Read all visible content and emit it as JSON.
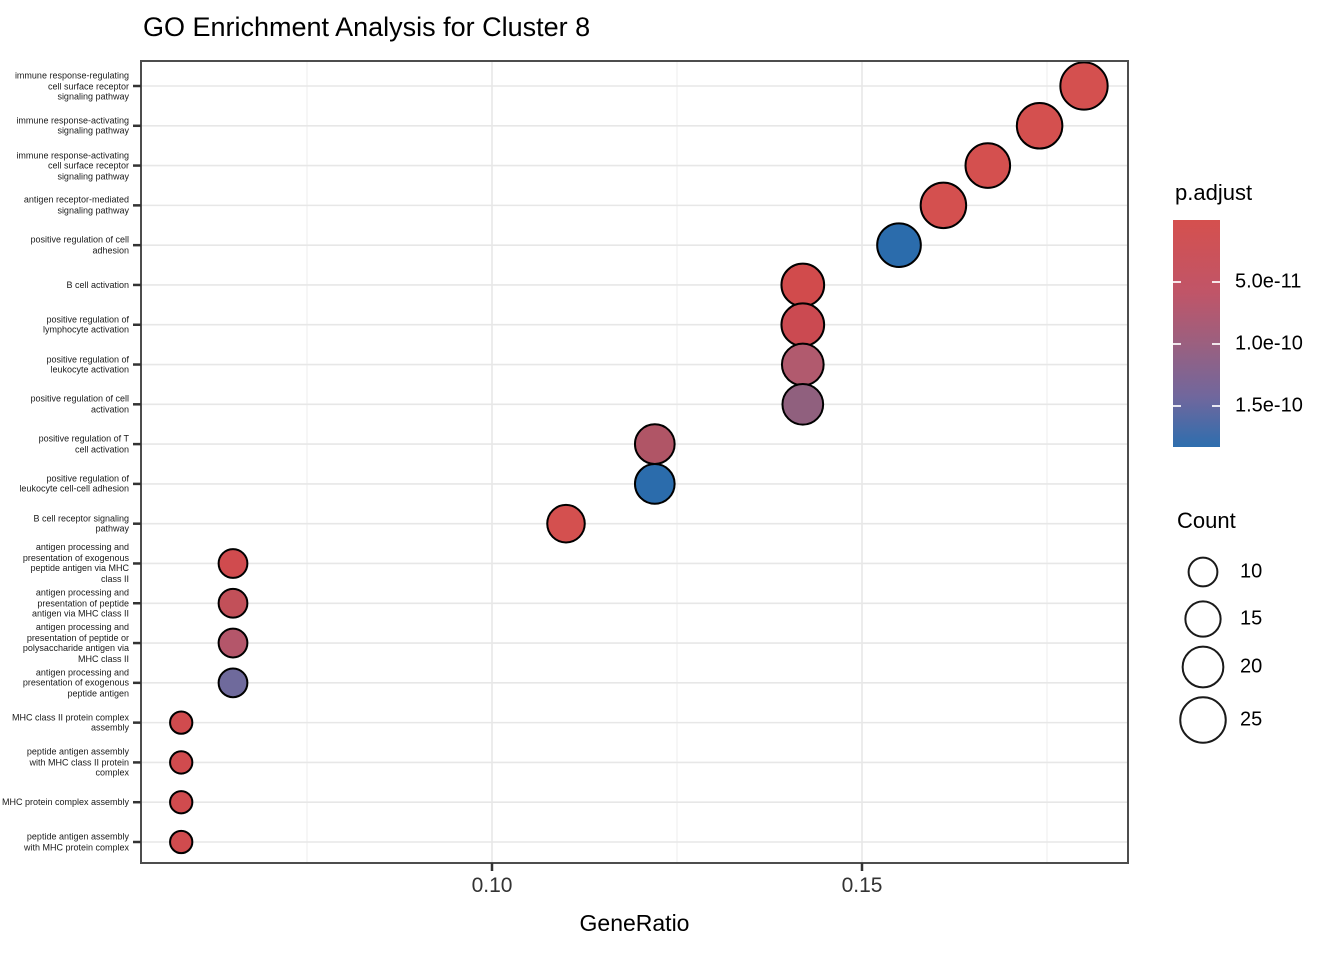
{
  "title": "GO Enrichment Analysis for Cluster 8",
  "x_axis": {
    "label": "GeneRatio",
    "ticks": [
      "0.10",
      "0.15"
    ],
    "tick_values": [
      0.1,
      0.15
    ],
    "minor_gridline_values": [
      0.075,
      0.125,
      0.175
    ],
    "range": [
      0.0527,
      0.1859
    ]
  },
  "legend": {
    "p_adjust": {
      "title": "p.adjust",
      "ticks": [
        "5.0e-11",
        "1.0e-10",
        "1.5e-10"
      ],
      "gradient_stops": [
        "#D5504E",
        "#C05568",
        "#9A6080",
        "#70679D",
        "#2E6EAE"
      ]
    },
    "count": {
      "title": "Count",
      "values": [
        10,
        15,
        20,
        25
      ]
    }
  },
  "chart_data": {
    "type": "scatter",
    "title": "GO Enrichment Analysis for Cluster 8",
    "xlabel": "GeneRatio",
    "x_ticks": [
      0.1,
      0.15
    ],
    "xlim": [
      0.0527,
      0.1859
    ],
    "grid": true,
    "legend_position": "right",
    "color_scale": {
      "label": "p.adjust",
      "domain": [
        0,
        1.83e-10
      ],
      "low_color": "#D5504E",
      "high_color": "#2E6EAE"
    },
    "size_scale": {
      "label": "Count",
      "legend_values": [
        10,
        15,
        20,
        25
      ]
    },
    "points": [
      {
        "label": "immune response-regulating\ncell surface receptor\nsignaling pathway",
        "gene_ratio": 0.18,
        "count": 27,
        "p_adjust": "2.0e-11",
        "color": "#D4504F"
      },
      {
        "label": "immune response-activating\nsignaling pathway",
        "gene_ratio": 0.174,
        "count": 25,
        "p_adjust": "2.0e-11",
        "color": "#D4504F"
      },
      {
        "label": "immune response-activating\ncell surface receptor\nsignaling pathway",
        "gene_ratio": 0.167,
        "count": 24,
        "p_adjust": "2.0e-11",
        "color": "#D4504F"
      },
      {
        "label": "antigen receptor-mediated\nsignaling pathway",
        "gene_ratio": 0.161,
        "count": 25,
        "p_adjust": "2.0e-11",
        "color": "#D4504F"
      },
      {
        "label": "positive regulation of cell\nadhesion",
        "gene_ratio": 0.155,
        "count": 23,
        "p_adjust": "1.6e-10",
        "color": "#2B6CAC"
      },
      {
        "label": "B cell activation",
        "gene_ratio": 0.142,
        "count": 22,
        "p_adjust": "2.0e-11",
        "color": "#D14B4C"
      },
      {
        "label": "positive regulation of\nlymphocyte activation",
        "gene_ratio": 0.142,
        "count": 22,
        "p_adjust": "3.0e-11",
        "color": "#CB4A51"
      },
      {
        "label": "positive regulation of\nleukocyte activation",
        "gene_ratio": 0.142,
        "count": 21,
        "p_adjust": "7.0e-11",
        "color": "#B15A6E"
      },
      {
        "label": "positive regulation of cell\nactivation",
        "gene_ratio": 0.142,
        "count": 20,
        "p_adjust": "1.05e-10",
        "color": "#90607E"
      },
      {
        "label": "positive regulation of T\ncell activation",
        "gene_ratio": 0.122,
        "count": 19,
        "p_adjust": "7.5e-11",
        "color": "#B05566"
      },
      {
        "label": "positive regulation of\nleukocyte cell-cell adhesion",
        "gene_ratio": 0.122,
        "count": 19,
        "p_adjust": "1.6e-10",
        "color": "#2B6CAC"
      },
      {
        "label": "B cell receptor signaling\npathway",
        "gene_ratio": 0.11,
        "count": 17,
        "p_adjust": "2.0e-11",
        "color": "#D4504F"
      },
      {
        "label": "antigen processing and\npresentation of exogenous\npeptide antigen via MHC\nclass II",
        "gene_ratio": 0.065,
        "count": 10,
        "p_adjust": "2.0e-11",
        "color": "#D04B4E"
      },
      {
        "label": "antigen processing and\npresentation of peptide\nantigen via MHC class II",
        "gene_ratio": 0.065,
        "count": 10,
        "p_adjust": "5.0e-11",
        "color": "#C25059"
      },
      {
        "label": "antigen processing and\npresentation of peptide or\npolysaccharide antigen via\nMHC class II",
        "gene_ratio": 0.065,
        "count": 10,
        "p_adjust": "7.0e-11",
        "color": "#B4566A"
      },
      {
        "label": "antigen processing and\npresentation of exogenous\npeptide antigen",
        "gene_ratio": 0.065,
        "count": 10,
        "p_adjust": "1.25e-10",
        "color": "#6F6A9C"
      },
      {
        "label": "MHC class II protein complex\nassembly",
        "gene_ratio": 0.058,
        "count": 6,
        "p_adjust": "2.0e-11",
        "color": "#D04B4E"
      },
      {
        "label": "peptide antigen assembly\nwith MHC class II protein\ncomplex",
        "gene_ratio": 0.058,
        "count": 6,
        "p_adjust": "2.0e-11",
        "color": "#D04B4E"
      },
      {
        "label": "MHC protein complex assembly",
        "gene_ratio": 0.058,
        "count": 6,
        "p_adjust": "2.0e-11",
        "color": "#D04B4E"
      },
      {
        "label": "peptide antigen assembly\nwith MHC protein complex",
        "gene_ratio": 0.058,
        "count": 6,
        "p_adjust": "2.0e-11",
        "color": "#D04B4E"
      }
    ]
  }
}
